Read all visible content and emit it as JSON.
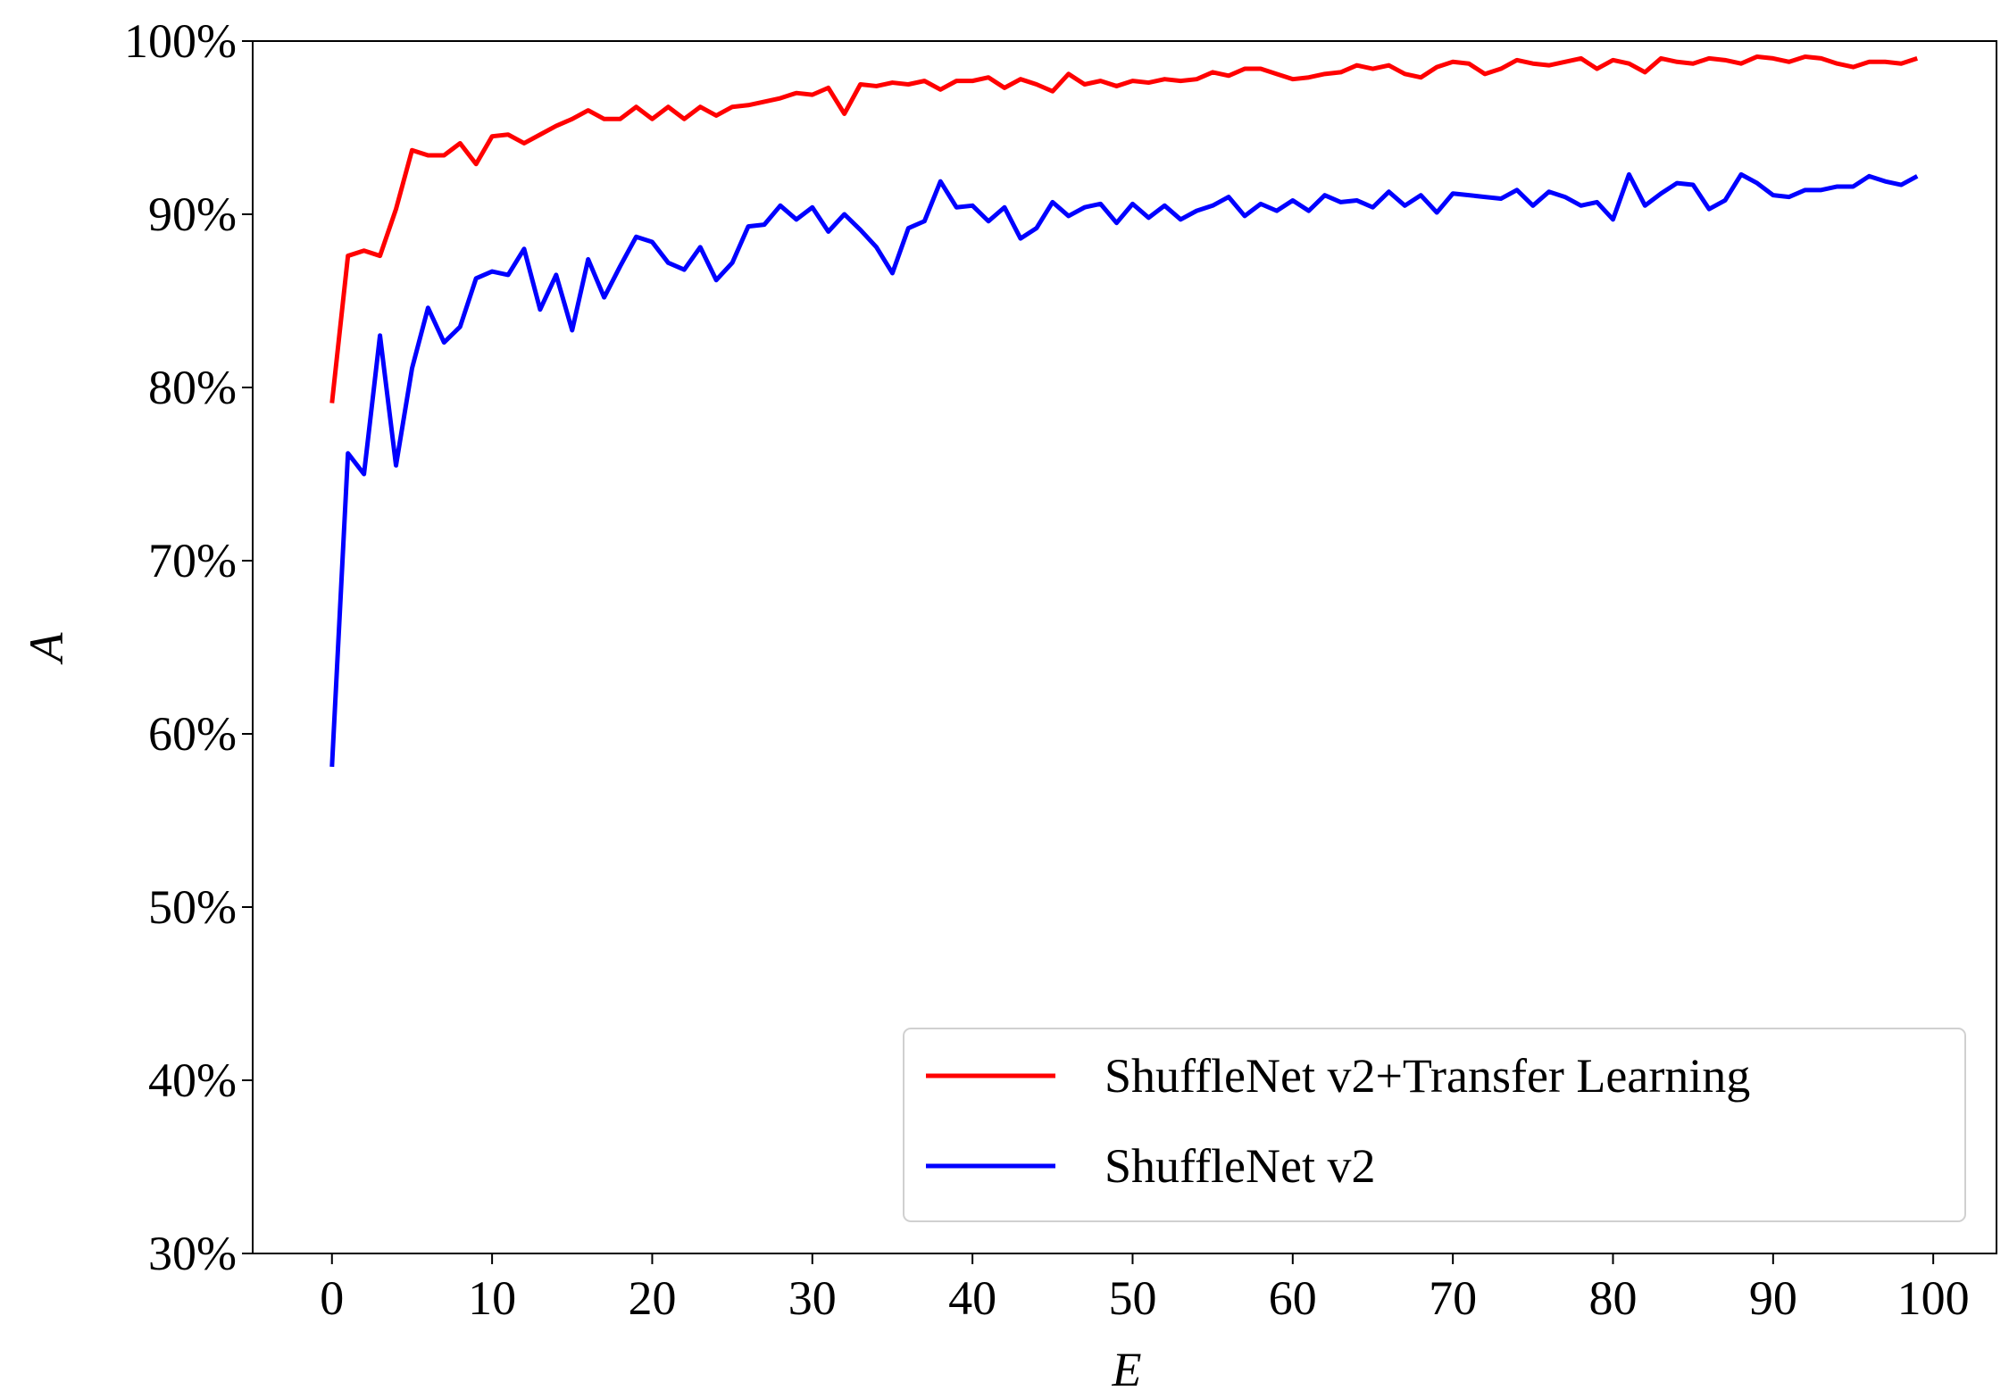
{
  "chart_data": {
    "type": "line",
    "xlabel": "E",
    "ylabel": "A",
    "x": [
      0,
      1,
      2,
      3,
      4,
      5,
      6,
      7,
      8,
      9,
      10,
      11,
      12,
      13,
      14,
      15,
      16,
      17,
      18,
      19,
      20,
      21,
      22,
      23,
      24,
      25,
      26,
      27,
      28,
      29,
      30,
      31,
      32,
      33,
      34,
      35,
      36,
      37,
      38,
      39,
      40,
      41,
      42,
      43,
      44,
      45,
      46,
      47,
      48,
      49,
      50,
      51,
      52,
      53,
      54,
      55,
      56,
      57,
      58,
      59,
      60,
      61,
      62,
      63,
      64,
      65,
      66,
      67,
      68,
      69,
      70,
      71,
      72,
      73,
      74,
      75,
      76,
      77,
      78,
      79,
      80,
      81,
      82,
      83,
      84,
      85,
      86,
      87,
      88,
      89,
      90,
      91,
      92,
      93,
      94,
      95,
      96,
      97,
      98,
      99
    ],
    "series": [
      {
        "name": "ShuffleNet v2+Transfer Learning",
        "color": "#ff0000",
        "values": [
          79.1,
          87.6,
          87.9,
          87.6,
          90.3,
          93.7,
          93.4,
          93.4,
          94.1,
          92.9,
          94.5,
          94.6,
          94.1,
          94.6,
          95.1,
          95.5,
          96.0,
          95.5,
          95.5,
          96.2,
          95.5,
          96.2,
          95.5,
          96.2,
          95.7,
          96.2,
          96.3,
          96.5,
          96.7,
          97.0,
          96.9,
          97.3,
          95.8,
          97.5,
          97.4,
          97.6,
          97.5,
          97.7,
          97.2,
          97.7,
          97.7,
          97.9,
          97.3,
          97.8,
          97.5,
          97.1,
          98.1,
          97.5,
          97.7,
          97.4,
          97.7,
          97.6,
          97.8,
          97.7,
          97.8,
          98.2,
          98.0,
          98.4,
          98.4,
          98.1,
          97.8,
          97.9,
          98.1,
          98.2,
          98.6,
          98.4,
          98.6,
          98.1,
          97.9,
          98.5,
          98.8,
          98.7,
          98.1,
          98.4,
          98.9,
          98.7,
          98.6,
          98.8,
          99.0,
          98.4,
          98.9,
          98.7,
          98.2,
          99.0,
          98.8,
          98.7,
          99.0,
          98.9,
          98.7,
          99.1,
          99.0,
          98.8,
          99.1,
          99.0,
          98.7,
          98.5,
          98.8,
          98.8,
          98.7,
          99.0
        ]
      },
      {
        "name": "ShuffleNet v2",
        "color": "#0000ff",
        "values": [
          58.1,
          76.2,
          75.0,
          83.0,
          75.5,
          81.1,
          84.6,
          82.6,
          83.5,
          86.3,
          86.7,
          86.5,
          88.0,
          84.5,
          86.5,
          83.3,
          87.4,
          85.2,
          87.0,
          88.7,
          88.4,
          87.2,
          86.8,
          88.1,
          86.2,
          87.2,
          89.3,
          89.4,
          90.5,
          89.7,
          90.4,
          89.0,
          90.0,
          89.1,
          88.1,
          86.6,
          89.2,
          89.6,
          91.9,
          90.4,
          90.5,
          89.6,
          90.4,
          88.6,
          89.2,
          90.7,
          89.9,
          90.4,
          90.6,
          89.5,
          90.6,
          89.8,
          90.5,
          89.7,
          90.2,
          90.5,
          91.0,
          89.9,
          90.6,
          90.2,
          90.8,
          90.2,
          91.1,
          90.7,
          90.8,
          90.4,
          91.3,
          90.5,
          91.1,
          90.1,
          91.2,
          91.1,
          91.0,
          90.9,
          91.4,
          90.5,
          91.3,
          91.0,
          90.5,
          90.7,
          89.7,
          92.3,
          90.5,
          91.2,
          91.8,
          91.7,
          90.3,
          90.8,
          92.3,
          91.8,
          91.1,
          91.0,
          91.4,
          91.4,
          91.6,
          91.6,
          92.2,
          91.9,
          91.7,
          92.2
        ]
      }
    ],
    "xlim": [
      -4.95,
      103.95
    ],
    "xticks": [
      0,
      10,
      20,
      30,
      40,
      50,
      60,
      70,
      80,
      90,
      100
    ],
    "ylim": [
      30,
      100
    ],
    "yticks": [
      {
        "value": 30,
        "label": "30%"
      },
      {
        "value": 40,
        "label": "40%"
      },
      {
        "value": 50,
        "label": "50%"
      },
      {
        "value": 60,
        "label": "60%"
      },
      {
        "value": 70,
        "label": "70%"
      },
      {
        "value": 80,
        "label": "80%"
      },
      {
        "value": 90,
        "label": "90%"
      },
      {
        "value": 100,
        "label": "100%"
      }
    ],
    "legend": "lower right"
  }
}
